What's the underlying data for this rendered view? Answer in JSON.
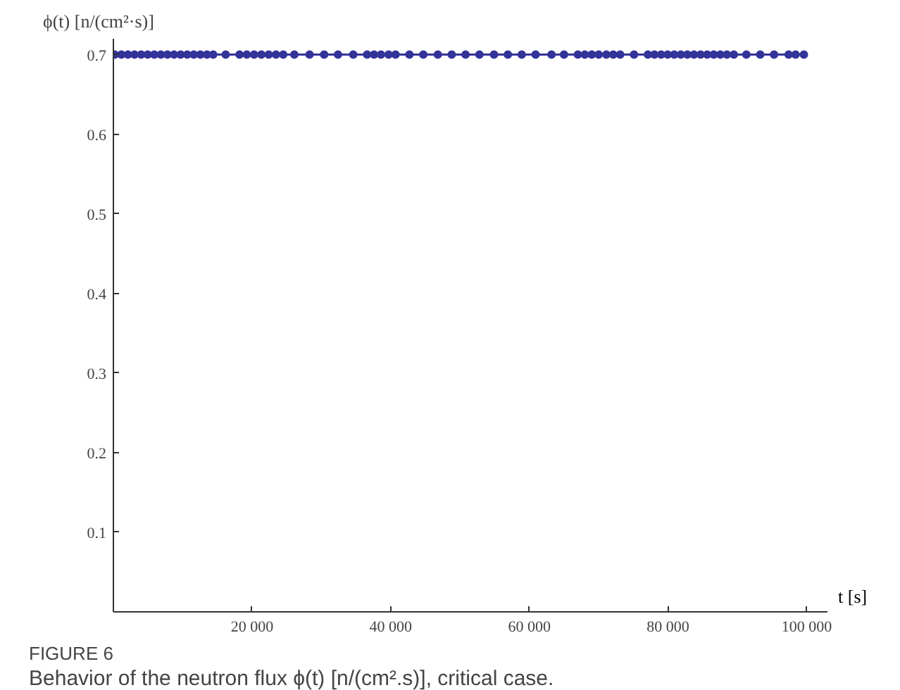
{
  "chart_data": {
    "type": "line",
    "ylabel": "ϕ(t) [n/(cm²·s)]",
    "xlabel": "t [s]",
    "annotations": [
      "FIGURE 6",
      "Behavior of the neutron flux ϕ(t) [n/(cm².s)], critical case."
    ],
    "xlim": [
      0,
      103000
    ],
    "ylim": [
      0,
      0.72
    ],
    "xticks": [
      {
        "value": 20000,
        "label": "20 000"
      },
      {
        "value": 40000,
        "label": "40 000"
      },
      {
        "value": 60000,
        "label": "60 000"
      },
      {
        "value": 80000,
        "label": "80 000"
      },
      {
        "value": 100000,
        "label": "100 000"
      }
    ],
    "yticks": [
      0.1,
      0.2,
      0.3,
      0.4,
      0.5,
      0.6,
      0.7
    ],
    "marker": "circle",
    "grid": false,
    "series": [
      {
        "color": "#33339a",
        "x": [
          200,
          1150,
          2100,
          3050,
          4000,
          4950,
          5900,
          6850,
          7800,
          8750,
          9700,
          10650,
          11600,
          12550,
          13500,
          14400,
          16200,
          18200,
          19250,
          20300,
          21350,
          22400,
          23450,
          24500,
          26100,
          28300,
          30400,
          32400,
          34600,
          36600,
          37600,
          38600,
          39700,
          40700,
          42700,
          44700,
          46800,
          48800,
          50800,
          52800,
          54900,
          56900,
          58900,
          60900,
          63200,
          65000,
          67000,
          68000,
          69000,
          70000,
          71100,
          72100,
          73100,
          75100,
          77100,
          78050,
          79000,
          79950,
          80900,
          81850,
          82800,
          83750,
          84700,
          85650,
          86600,
          87550,
          88500,
          89500,
          91300,
          93300,
          95300,
          97400,
          98400,
          99600
        ],
        "values": [
          0.7,
          0.7,
          0.7,
          0.7,
          0.7,
          0.7,
          0.7,
          0.7,
          0.7,
          0.7,
          0.7,
          0.7,
          0.7,
          0.7,
          0.7,
          0.7,
          0.7,
          0.7,
          0.7,
          0.7,
          0.7,
          0.7,
          0.7,
          0.7,
          0.7,
          0.7,
          0.7,
          0.7,
          0.7,
          0.7,
          0.7,
          0.7,
          0.7,
          0.7,
          0.7,
          0.7,
          0.7,
          0.7,
          0.7,
          0.7,
          0.7,
          0.7,
          0.7,
          0.7,
          0.7,
          0.7,
          0.7,
          0.7,
          0.7,
          0.7,
          0.7,
          0.7,
          0.7,
          0.7,
          0.7,
          0.7,
          0.7,
          0.7,
          0.7,
          0.7,
          0.7,
          0.7,
          0.7,
          0.7,
          0.7,
          0.7,
          0.7,
          0.7,
          0.7,
          0.7,
          0.7,
          0.7,
          0.7,
          0.7
        ]
      }
    ]
  }
}
